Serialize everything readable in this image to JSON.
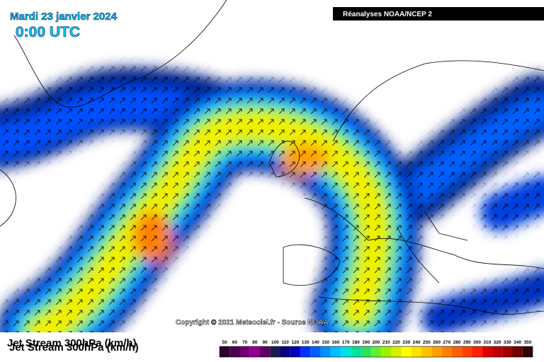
{
  "header": {
    "date": "Mardi 23 janvier 2024",
    "time": "0:00 UTC",
    "source": "Réanalyses NOAA/NCEP 2"
  },
  "copyright": "Copyright © 2021 Meteociel.fr - Source NOAA",
  "field_label": "Jet Stream 300hPa (km/h)",
  "colorbar": {
    "labels": [
      50,
      60,
      70,
      80,
      90,
      100,
      110,
      120,
      130,
      140,
      150,
      160,
      170,
      180,
      190,
      200,
      210,
      220,
      230,
      240,
      250,
      260,
      270,
      280,
      290,
      300,
      310,
      320,
      330,
      340,
      350
    ],
    "colors": [
      "#2a0030",
      "#4b0050",
      "#700070",
      "#900090",
      "#600060",
      "#1a1a50",
      "#000080",
      "#0000c0",
      "#0030ff",
      "#0060ff",
      "#0090ff",
      "#00c0ff",
      "#00e0e0",
      "#00e0a0",
      "#30e060",
      "#60f030",
      "#a0f000",
      "#d0f000",
      "#ffff00",
      "#ffe000",
      "#ffc000",
      "#ffa000",
      "#ff8000",
      "#ff6000",
      "#ff4000",
      "#ff2000",
      "#e00000",
      "#c00000",
      "#a00000",
      "#700000",
      "#300000"
    ]
  }
}
